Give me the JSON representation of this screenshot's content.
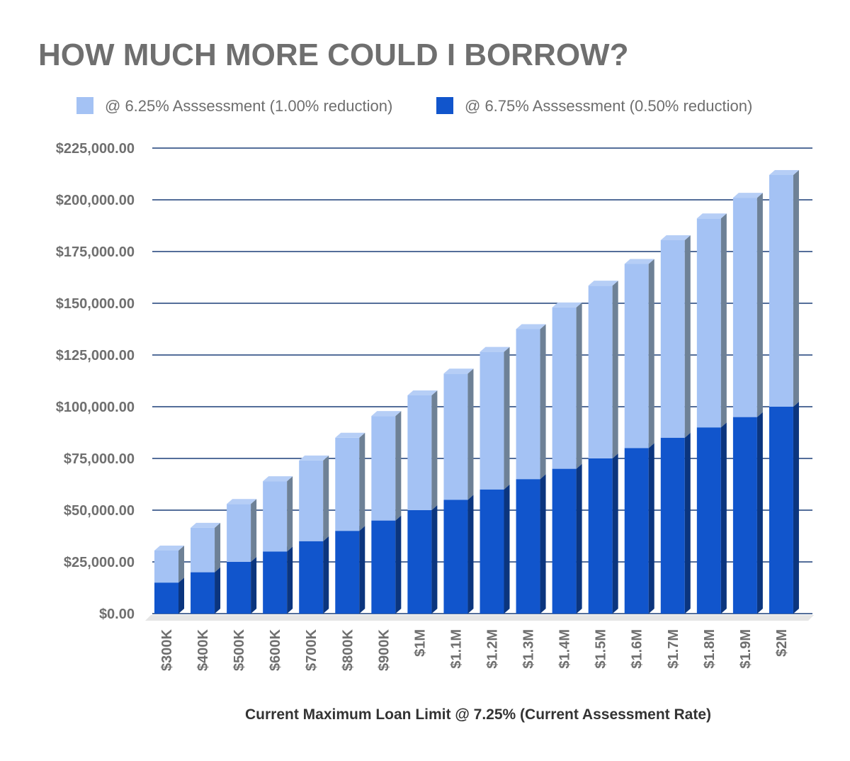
{
  "chart_data": {
    "type": "bar",
    "stacked": true,
    "three_d": true,
    "title": "HOW MUCH MORE COULD I BORROW?",
    "xlabel": "Current Maximum Loan Limit @ 7.25% (Current Assessment Rate)",
    "ylabel": "",
    "ylim": [
      0,
      225000
    ],
    "yticks": [
      "$0.00",
      "$25,000.00",
      "$50,000.00",
      "$75,000.00",
      "$100,000.00",
      "$125,000.00",
      "$150,000.00",
      "$175,000.00",
      "$200,000.00",
      "$225,000.00"
    ],
    "ytick_values": [
      0,
      25000,
      50000,
      75000,
      100000,
      125000,
      150000,
      175000,
      200000,
      225000
    ],
    "grid": true,
    "legend_position": "top",
    "categories": [
      "$300K",
      "$400K",
      "$500K",
      "$600K",
      "$700K",
      "$800K",
      "$900K",
      "$1M",
      "$1.1M",
      "$1.2M",
      "$1.3M",
      "$1.4M",
      "$1.5M",
      "$1.6M",
      "$1.7M",
      "$1.8M",
      "$1.9M",
      "$2M"
    ],
    "series": [
      {
        "name": "@ 6.75% Asssessment (0.50% reduction)",
        "color": "#1155cc",
        "values": [
          15000,
          20000,
          25000,
          30000,
          35000,
          40000,
          45000,
          50000,
          55000,
          60000,
          65000,
          70000,
          75000,
          80000,
          85000,
          90000,
          95000,
          100000
        ]
      },
      {
        "name": "@ 6.25% Asssessment (1.00% reduction)",
        "color": "#a4c2f4",
        "values": [
          15500,
          21500,
          28000,
          34000,
          39000,
          45000,
          50500,
          55500,
          61000,
          66500,
          72500,
          78000,
          83500,
          89000,
          95500,
          101000,
          106000,
          112000
        ]
      }
    ],
    "legend_order": [
      1,
      0
    ],
    "grid_color": "#1c3f78"
  }
}
